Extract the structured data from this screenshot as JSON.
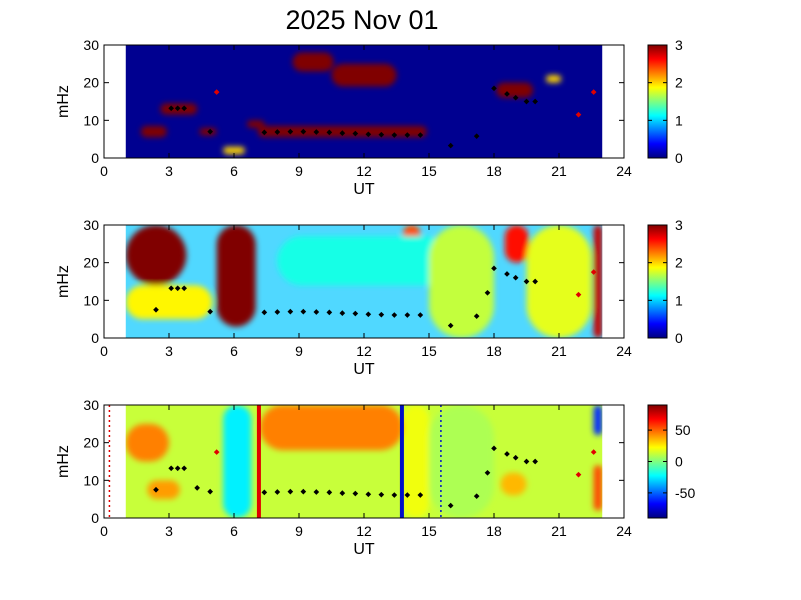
{
  "title": "2025 Nov 01",
  "chart_data": [
    {
      "type": "heatmap",
      "xlabel": "UT",
      "ylabel": "mHz",
      "xlim": [
        0,
        24
      ],
      "ylim": [
        0,
        30
      ],
      "xticks": [
        "0",
        "3",
        "6",
        "9",
        "12",
        "15",
        "18",
        "21",
        "24"
      ],
      "yticks": [
        "0",
        "10",
        "20",
        "30"
      ],
      "colorbar": {
        "range": [
          0,
          3
        ],
        "ticks": [
          "0",
          "1",
          "2",
          "3"
        ],
        "colormap": "jet"
      },
      "background_color": "#000090",
      "blobs": [
        {
          "ut": [
            7.1,
            14.9
          ],
          "mhz": [
            5.5,
            8.5
          ],
          "level": 3
        },
        {
          "ut": [
            10.5,
            13.5
          ],
          "mhz": [
            19,
            25
          ],
          "level": 3
        },
        {
          "ut": [
            8.7,
            10.6
          ],
          "mhz": [
            23,
            28
          ],
          "level": 3
        },
        {
          "ut": [
            2.6,
            4.3
          ],
          "mhz": [
            11.5,
            14.5
          ],
          "level": 3
        },
        {
          "ut": [
            1.7,
            2.9
          ],
          "mhz": [
            5.5,
            8.5
          ],
          "level": 3
        },
        {
          "ut": [
            4.4,
            5.2
          ],
          "mhz": [
            6,
            8
          ],
          "level": 3
        },
        {
          "ut": [
            6.6,
            7.4
          ],
          "mhz": [
            8,
            10
          ],
          "level": 3
        },
        {
          "ut": [
            18.1,
            19.8
          ],
          "mhz": [
            16,
            20
          ],
          "level": 3
        },
        {
          "ut": [
            5.5,
            6.5
          ],
          "mhz": [
            1,
            3
          ],
          "level": 2
        },
        {
          "ut": [
            20.4,
            21.1
          ],
          "mhz": [
            20,
            22
          ],
          "level": 2
        }
      ],
      "markers": [
        {
          "ut": 3.1,
          "mhz": 13.2
        },
        {
          "ut": 3.4,
          "mhz": 13.2
        },
        {
          "ut": 3.7,
          "mhz": 13.2
        },
        {
          "ut": 4.9,
          "mhz": 7.0
        },
        {
          "ut": 7.4,
          "mhz": 6.8
        },
        {
          "ut": 8.0,
          "mhz": 6.9
        },
        {
          "ut": 8.6,
          "mhz": 7.0
        },
        {
          "ut": 9.2,
          "mhz": 7.0
        },
        {
          "ut": 9.8,
          "mhz": 6.9
        },
        {
          "ut": 10.4,
          "mhz": 6.8
        },
        {
          "ut": 11.0,
          "mhz": 6.6
        },
        {
          "ut": 11.6,
          "mhz": 6.5
        },
        {
          "ut": 12.2,
          "mhz": 6.3
        },
        {
          "ut": 12.8,
          "mhz": 6.2
        },
        {
          "ut": 13.4,
          "mhz": 6.1
        },
        {
          "ut": 14.0,
          "mhz": 6.1
        },
        {
          "ut": 14.6,
          "mhz": 6.1
        },
        {
          "ut": 16.0,
          "mhz": 3.3
        },
        {
          "ut": 17.2,
          "mhz": 5.8
        },
        {
          "ut": 18.0,
          "mhz": 18.5
        },
        {
          "ut": 18.6,
          "mhz": 17.0
        },
        {
          "ut": 19.0,
          "mhz": 16.0
        },
        {
          "ut": 19.5,
          "mhz": 15.0
        },
        {
          "ut": 19.9,
          "mhz": 15.0
        }
      ],
      "red_markers": [
        {
          "ut": 5.2,
          "mhz": 17.5
        },
        {
          "ut": 21.9,
          "mhz": 11.5
        },
        {
          "ut": 22.6,
          "mhz": 17.5
        }
      ]
    },
    {
      "type": "heatmap",
      "xlabel": "UT",
      "ylabel": "mHz",
      "xlim": [
        0,
        24
      ],
      "ylim": [
        0,
        30
      ],
      "xticks": [
        "0",
        "3",
        "6",
        "9",
        "12",
        "15",
        "18",
        "21",
        "24"
      ],
      "yticks": [
        "0",
        "10",
        "20",
        "30"
      ],
      "colorbar": {
        "range": [
          0,
          3
        ],
        "ticks": [
          "0",
          "1",
          "2",
          "3"
        ],
        "colormap": "jet"
      },
      "background_color": "#50d8ff",
      "blobs": [
        {
          "ut": [
            1.0,
            3.8
          ],
          "mhz": [
            14,
            30
          ],
          "level": 3
        },
        {
          "ut": [
            5.2,
            7.0
          ],
          "mhz": [
            3,
            30
          ],
          "level": 3
        },
        {
          "ut": [
            18.5,
            19.6
          ],
          "mhz": [
            20,
            30
          ],
          "level": 2.6
        },
        {
          "ut": [
            13.8,
            14.6
          ],
          "mhz": [
            24,
            30
          ],
          "level": 2.4
        },
        {
          "ut": [
            22.6,
            23.0
          ],
          "mhz": [
            0,
            30
          ],
          "level": 2.8
        },
        {
          "ut": [
            8.0,
            16.0
          ],
          "mhz": [
            14,
            27
          ],
          "level": 1.2
        },
        {
          "ut": [
            1.0,
            5.0
          ],
          "mhz": [
            5,
            14
          ],
          "level": 1.9
        },
        {
          "ut": [
            15.0,
            18.0
          ],
          "mhz": [
            0,
            30
          ],
          "level": 1.7
        },
        {
          "ut": [
            19.5,
            22.5
          ],
          "mhz": [
            0,
            30
          ],
          "level": 1.8
        }
      ],
      "markers": [
        {
          "ut": 2.4,
          "mhz": 7.5
        },
        {
          "ut": 3.1,
          "mhz": 13.2
        },
        {
          "ut": 3.4,
          "mhz": 13.2
        },
        {
          "ut": 3.7,
          "mhz": 13.2
        },
        {
          "ut": 4.9,
          "mhz": 7.0
        },
        {
          "ut": 7.4,
          "mhz": 6.8
        },
        {
          "ut": 8.0,
          "mhz": 6.9
        },
        {
          "ut": 8.6,
          "mhz": 7.0
        },
        {
          "ut": 9.2,
          "mhz": 7.0
        },
        {
          "ut": 9.8,
          "mhz": 6.9
        },
        {
          "ut": 10.4,
          "mhz": 6.8
        },
        {
          "ut": 11.0,
          "mhz": 6.6
        },
        {
          "ut": 11.6,
          "mhz": 6.5
        },
        {
          "ut": 12.2,
          "mhz": 6.3
        },
        {
          "ut": 12.8,
          "mhz": 6.2
        },
        {
          "ut": 13.4,
          "mhz": 6.1
        },
        {
          "ut": 14.0,
          "mhz": 6.1
        },
        {
          "ut": 14.6,
          "mhz": 6.1
        },
        {
          "ut": 16.0,
          "mhz": 3.3
        },
        {
          "ut": 17.2,
          "mhz": 5.8
        },
        {
          "ut": 17.7,
          "mhz": 12.0
        },
        {
          "ut": 18.0,
          "mhz": 18.5
        },
        {
          "ut": 18.6,
          "mhz": 17.0
        },
        {
          "ut": 19.0,
          "mhz": 16.0
        },
        {
          "ut": 19.5,
          "mhz": 15.0
        },
        {
          "ut": 19.9,
          "mhz": 15.0
        }
      ],
      "red_markers": [
        {
          "ut": 21.9,
          "mhz": 11.5
        },
        {
          "ut": 22.6,
          "mhz": 17.5
        }
      ]
    },
    {
      "type": "heatmap",
      "xlabel": "UT",
      "ylabel": "mHz",
      "xlim": [
        0,
        24
      ],
      "ylim": [
        0,
        30
      ],
      "xticks": [
        "0",
        "3",
        "6",
        "9",
        "12",
        "15",
        "18",
        "21",
        "24"
      ],
      "yticks": [
        "0",
        "10",
        "20",
        "30"
      ],
      "colorbar": {
        "range": [
          -90,
          90
        ],
        "ticks": [
          "50",
          "0",
          "-50"
        ],
        "tick_values": [
          50,
          0,
          -50
        ],
        "colormap": "jet"
      },
      "background_color": "#c8ff3a",
      "blobs": [
        {
          "ut": [
            7.2,
            13.8
          ],
          "mhz": [
            18,
            30
          ],
          "level": 45
        },
        {
          "ut": [
            1.0,
            3.0
          ],
          "mhz": [
            15,
            25
          ],
          "level": 45
        },
        {
          "ut": [
            2.0,
            3.5
          ],
          "mhz": [
            5,
            10
          ],
          "level": 40
        },
        {
          "ut": [
            18.3,
            19.5
          ],
          "mhz": [
            6,
            12
          ],
          "level": 35
        },
        {
          "ut": [
            5.5,
            6.8
          ],
          "mhz": [
            0,
            30
          ],
          "level": -25
        },
        {
          "ut": [
            22.6,
            23.0
          ],
          "mhz": [
            2,
            14
          ],
          "level": 55
        },
        {
          "ut": [
            22.6,
            23.0
          ],
          "mhz": [
            22,
            30
          ],
          "level": -60
        },
        {
          "ut": [
            13.8,
            15.0
          ],
          "mhz": [
            0,
            30
          ],
          "level": 20
        },
        {
          "ut": [
            15.0,
            18.0
          ],
          "mhz": [
            0,
            30
          ],
          "level": 8
        }
      ],
      "vertical_lines": [
        {
          "ut": 7.15,
          "color": "#e00000"
        },
        {
          "ut": 13.75,
          "color": "#0010c8"
        }
      ],
      "dotted_lines": [
        {
          "ut": 0.25,
          "color": "#e00000"
        },
        {
          "ut": 15.55,
          "color": "#0010c8"
        }
      ],
      "markers": [
        {
          "ut": 2.4,
          "mhz": 7.5
        },
        {
          "ut": 3.1,
          "mhz": 13.2
        },
        {
          "ut": 3.4,
          "mhz": 13.2
        },
        {
          "ut": 3.7,
          "mhz": 13.2
        },
        {
          "ut": 4.3,
          "mhz": 8.0
        },
        {
          "ut": 4.9,
          "mhz": 7.0
        },
        {
          "ut": 7.4,
          "mhz": 6.8
        },
        {
          "ut": 8.0,
          "mhz": 6.9
        },
        {
          "ut": 8.6,
          "mhz": 7.0
        },
        {
          "ut": 9.2,
          "mhz": 7.0
        },
        {
          "ut": 9.8,
          "mhz": 6.9
        },
        {
          "ut": 10.4,
          "mhz": 6.8
        },
        {
          "ut": 11.0,
          "mhz": 6.6
        },
        {
          "ut": 11.6,
          "mhz": 6.5
        },
        {
          "ut": 12.2,
          "mhz": 6.3
        },
        {
          "ut": 12.8,
          "mhz": 6.2
        },
        {
          "ut": 13.4,
          "mhz": 6.1
        },
        {
          "ut": 14.0,
          "mhz": 6.1
        },
        {
          "ut": 14.6,
          "mhz": 6.1
        },
        {
          "ut": 16.0,
          "mhz": 3.3
        },
        {
          "ut": 17.2,
          "mhz": 5.8
        },
        {
          "ut": 17.7,
          "mhz": 12.0
        },
        {
          "ut": 18.0,
          "mhz": 18.5
        },
        {
          "ut": 18.6,
          "mhz": 17.0
        },
        {
          "ut": 19.0,
          "mhz": 16.0
        },
        {
          "ut": 19.5,
          "mhz": 15.0
        },
        {
          "ut": 19.9,
          "mhz": 15.0
        }
      ],
      "red_markers": [
        {
          "ut": 5.2,
          "mhz": 17.5
        },
        {
          "ut": 21.9,
          "mhz": 11.5
        },
        {
          "ut": 22.6,
          "mhz": 17.5
        }
      ]
    }
  ]
}
